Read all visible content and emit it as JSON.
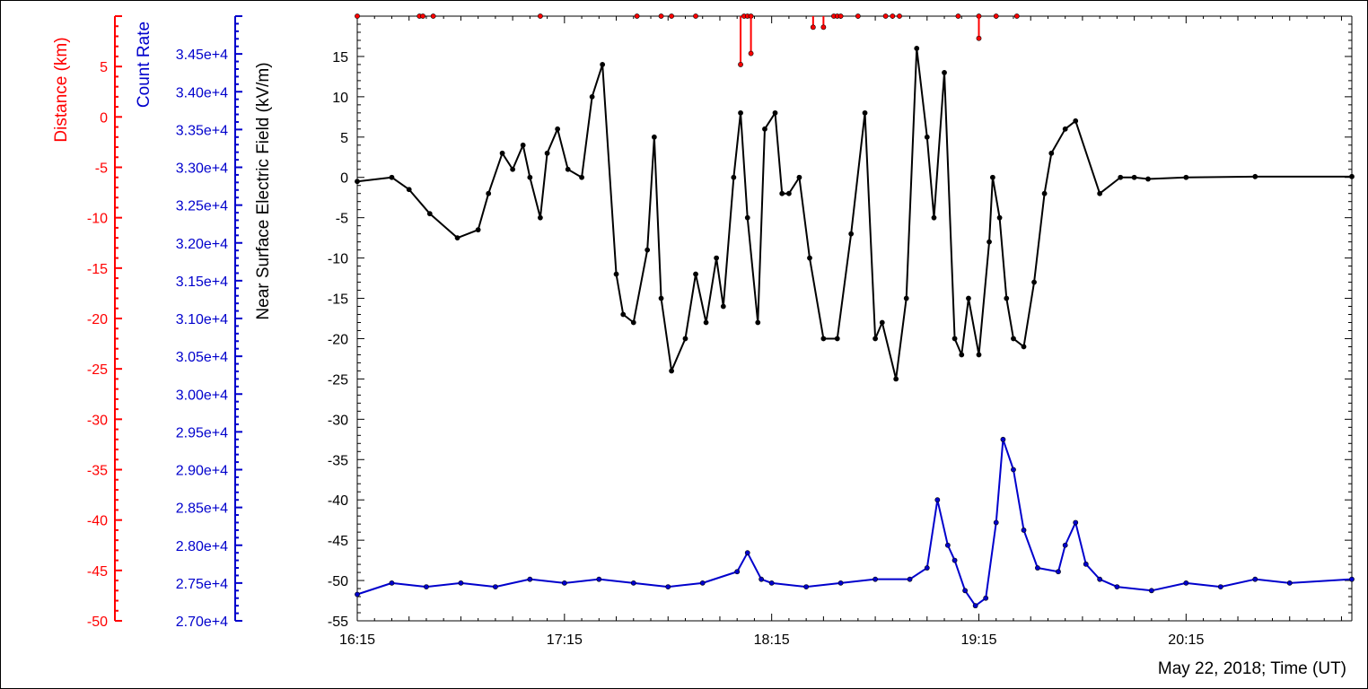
{
  "chart_data": {
    "type": "line",
    "date_label": "May 22, 2018; Time (UT)",
    "x_ticks": [
      "16:15",
      "17:15",
      "18:15",
      "19:15",
      "20:15"
    ],
    "x_range": [
      "16:15",
      "21:03"
    ],
    "axes": {
      "distance": {
        "label": "Distance (km)",
        "color": "#ff0000",
        "range": [
          -50,
          10
        ],
        "ticks": [
          "5",
          "0",
          "-5",
          "-10",
          "-15",
          "-20",
          "-25",
          "-30",
          "-35",
          "-40",
          "-45",
          "-50"
        ]
      },
      "count_rate": {
        "label": "Count Rate",
        "color": "#0000cc",
        "range": [
          27000,
          35000
        ],
        "ticks": [
          "3.45e+4",
          "3.40e+4",
          "3.35e+4",
          "3.30e+4",
          "3.25e+4",
          "3.20e+4",
          "3.15e+4",
          "3.10e+4",
          "3.05e+4",
          "3.00e+4",
          "2.95e+4",
          "2.90e+4",
          "2.85e+4",
          "2.80e+4",
          "2.75e+4",
          "2.70e+4"
        ]
      },
      "efield": {
        "label": "Near Surface Electric Field (kV/m)",
        "color": "#000000",
        "range": [
          -55,
          20
        ],
        "ticks": [
          "15",
          "10",
          "5",
          "0",
          "-5",
          "-10",
          "-15",
          "-20",
          "-25",
          "-30",
          "-35",
          "-40",
          "-45",
          "-50",
          "-55"
        ]
      }
    },
    "series": [
      {
        "name": "",
        "axis": "efield",
        "color": "#000000",
        "x": [
          "16:15",
          "16:25",
          "16:30",
          "16:36",
          "16:44",
          "16:50",
          "16:53",
          "16:57",
          "17:00",
          "17:03",
          "17:05",
          "17:08",
          "17:10",
          "17:13",
          "17:16",
          "17:20",
          "17:23",
          "17:26",
          "17:30",
          "17:32",
          "17:35",
          "17:39",
          "17:41",
          "17:43",
          "17:46",
          "17:50",
          "17:53",
          "17:56",
          "17:59",
          "18:01",
          "18:04",
          "18:06",
          "18:08",
          "18:11",
          "18:13",
          "18:16",
          "18:18",
          "18:20",
          "18:23",
          "18:26",
          "18:30",
          "18:34",
          "18:38",
          "18:42",
          "18:45",
          "18:47",
          "18:51",
          "18:54",
          "18:57",
          "19:00",
          "19:02",
          "19:05",
          "19:08",
          "19:10",
          "19:12",
          "19:15",
          "19:18",
          "19:19",
          "19:21",
          "19:23",
          "19:25",
          "19:28",
          "19:31",
          "19:34",
          "19:36",
          "19:40",
          "19:43",
          "19:50",
          "19:56",
          "20:00",
          "20:04",
          "20:15",
          "20:35",
          "21:03"
        ],
        "y": [
          -0.5,
          0,
          -1.5,
          -4.5,
          -7.5,
          -6.5,
          -2,
          3,
          1,
          4,
          0,
          -5,
          3,
          6,
          1,
          0,
          10,
          14,
          -12,
          -17,
          -18,
          -9,
          5,
          -15,
          -24,
          -20,
          -12,
          -18,
          -10,
          -16,
          0,
          8,
          -5,
          -18,
          6,
          8,
          -2,
          -2,
          0,
          -10,
          -20,
          -20,
          -7,
          8,
          -20,
          -18,
          -25,
          -15,
          16,
          5,
          -5,
          13,
          -20,
          -22,
          -15,
          -22,
          -8,
          0,
          -5,
          -15,
          -20,
          -21,
          -13,
          -2,
          3,
          6,
          7,
          -2,
          0,
          0,
          -0.2,
          0,
          0.1,
          0.1
        ]
      },
      {
        "name": "",
        "axis": "count_rate",
        "color": "#0000cc",
        "x": [
          "16:15",
          "16:25",
          "16:35",
          "16:45",
          "16:55",
          "17:05",
          "17:15",
          "17:25",
          "17:35",
          "17:45",
          "17:55",
          "18:05",
          "18:08",
          "18:12",
          "18:15",
          "18:25",
          "18:35",
          "18:45",
          "18:55",
          "19:00",
          "19:03",
          "19:06",
          "19:08",
          "19:11",
          "19:14",
          "19:17",
          "19:20",
          "19:22",
          "19:25",
          "19:28",
          "19:32",
          "19:38",
          "19:40",
          "19:43",
          "19:46",
          "19:50",
          "19:55",
          "20:05",
          "20:15",
          "20:25",
          "20:35",
          "20:45",
          "21:03"
        ],
        "y": [
          27350,
          27500,
          27450,
          27500,
          27450,
          27550,
          27500,
          27550,
          27500,
          27450,
          27500,
          27650,
          27900,
          27550,
          27500,
          27450,
          27500,
          27550,
          27550,
          27700,
          28600,
          28000,
          27800,
          27400,
          27200,
          27300,
          28300,
          29400,
          29000,
          28200,
          27700,
          27650,
          28000,
          28300,
          27750,
          27550,
          27450,
          27400,
          27500,
          27450,
          27550,
          27500,
          27550
        ]
      },
      {
        "name": "",
        "axis": "distance",
        "color": "#ff0000",
        "markers": "dots",
        "x": [
          "16:15",
          "16:33",
          "16:34",
          "16:37",
          "17:08",
          "17:36",
          "17:43",
          "17:46",
          "17:53",
          "18:07",
          "18:08",
          "18:09",
          "18:33",
          "18:34",
          "18:35",
          "18:40",
          "18:48",
          "18:50",
          "18:52",
          "19:09",
          "19:15",
          "19:20",
          "19:26"
        ],
        "y": [
          10,
          10,
          10,
          10,
          10,
          10,
          10,
          10,
          10,
          10,
          10,
          10,
          10,
          10,
          10,
          10,
          10,
          10,
          10,
          10,
          10,
          10,
          10
        ]
      }
    ],
    "distance_drops": [
      {
        "x": "18:06",
        "y_to": 5.2
      },
      {
        "x": "18:09",
        "y_to": 6.3
      },
      {
        "x": "18:27",
        "y_to": 8.9
      },
      {
        "x": "18:30",
        "y_to": 8.9
      },
      {
        "x": "19:15",
        "y_to": 7.8
      }
    ]
  }
}
